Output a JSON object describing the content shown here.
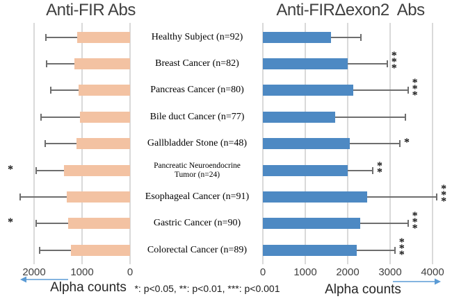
{
  "left_chart": {
    "title": "Anti-FIR Abs",
    "axis_label": "Alpha counts",
    "ticks": [
      2000,
      1000,
      0
    ]
  },
  "right_chart": {
    "title": "Anti-FIRΔexon2  Abs",
    "axis_label": "Alpha counts",
    "ticks": [
      0,
      1000,
      2000,
      3000,
      4000
    ]
  },
  "footnote": "*: p<0.05, **: p<0.01, ***: p<0.001",
  "colors": {
    "left_bar": "#f3c2a2",
    "right_bar": "#4d89c3",
    "whisker": "#6e6e6e",
    "gridline": "#d9d9d9",
    "arrow": "#5b9bd5",
    "title_text": "#3f3f3f",
    "significance_text": "#111111"
  },
  "chart_data": {
    "type": "bar",
    "orientation": "horizontal-diverging",
    "units": "Alpha counts",
    "grid": true,
    "legend": false,
    "categories": [
      "Healthy Subject (n=92)",
      "Breast Cancer (n=82)",
      "Pancreas Cancer (n=80)",
      "Bile duct Cancer (n=77)",
      "Gallbladder Stone (n=48)",
      "Pancreatic Neuroendocrine\nTumor (n=24)",
      "Esophageal Cancer (n=91)",
      "Gastric Cancer (n=90)",
      "Colorectal Cancer (n=89)"
    ],
    "series": [
      {
        "name": "Anti-FIR Abs",
        "side": "left",
        "axis_range": [
          0,
          2000
        ],
        "values": [
          1100,
          1160,
          1070,
          1040,
          1120,
          1380,
          1320,
          1290,
          1230
        ],
        "error_tips": [
          1750,
          1740,
          1650,
          1860,
          1770,
          1960,
          2290,
          1950,
          1890
        ],
        "significance": [
          "",
          "",
          "",
          "",
          "",
          "*",
          "",
          "*",
          ""
        ]
      },
      {
        "name": "Anti-FIRΔexon2 Abs",
        "side": "right",
        "axis_range": [
          0,
          4000
        ],
        "values": [
          1600,
          2000,
          2130,
          1700,
          2050,
          2000,
          2460,
          2300,
          2210
        ],
        "error_tips": [
          2310,
          2930,
          3420,
          3360,
          3230,
          2590,
          4100,
          3420,
          3110
        ],
        "significance": [
          "",
          "***",
          "***",
          "",
          "*",
          "**",
          "***",
          "***",
          "***"
        ]
      }
    ]
  }
}
